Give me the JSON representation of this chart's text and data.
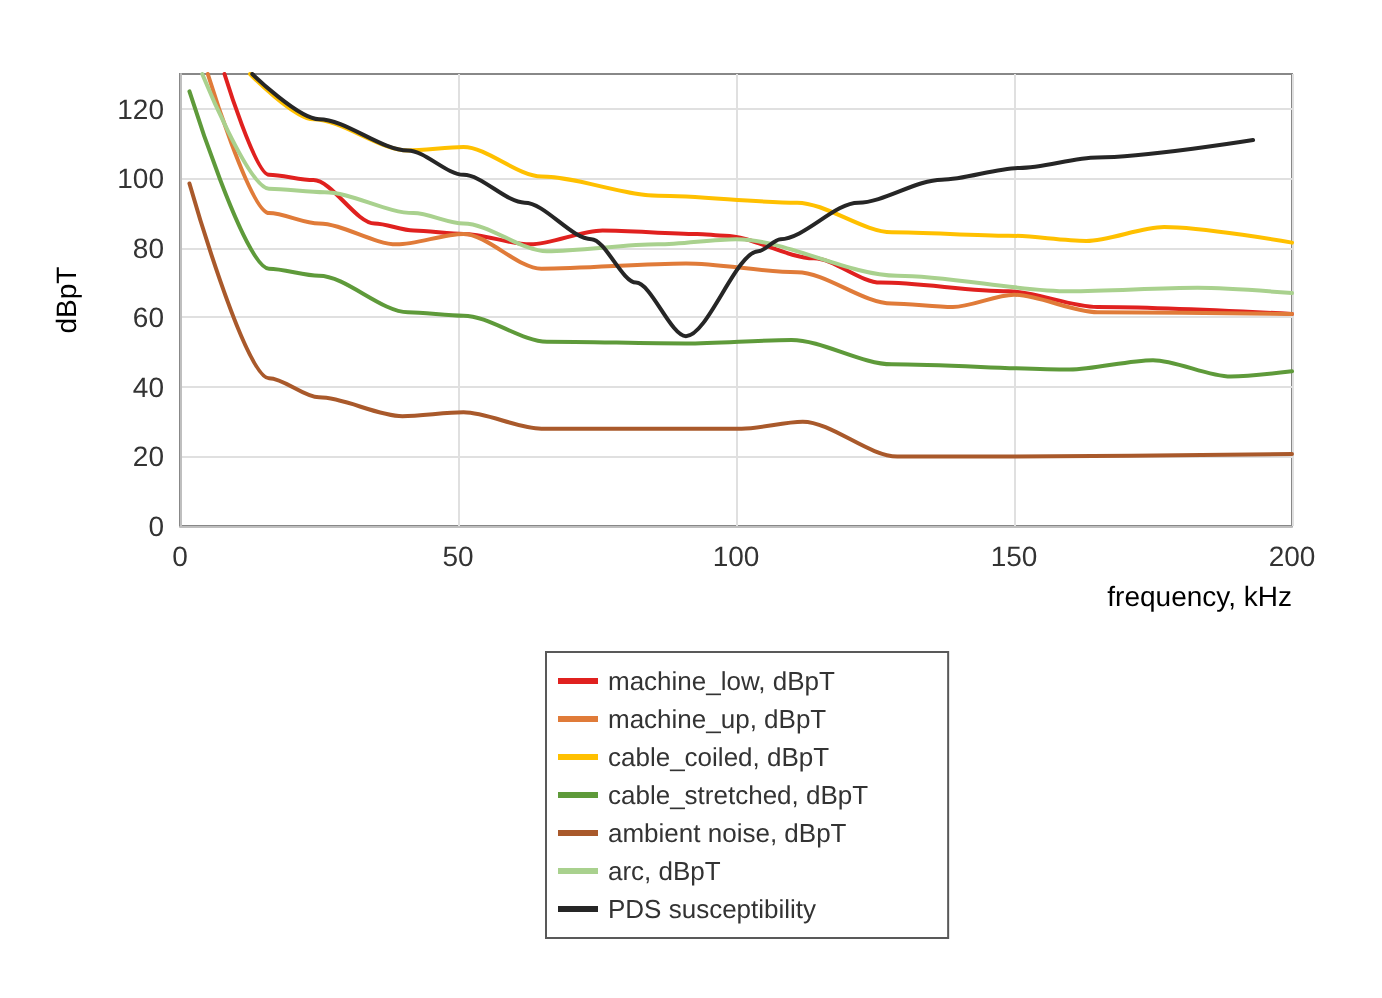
{
  "chart_data": {
    "type": "line",
    "xlabel": "frequency, kHz",
    "ylabel": "dBpT",
    "xlim": [
      0,
      200
    ],
    "xticks": [
      0,
      50,
      100,
      150,
      200
    ],
    "ylim": [
      0,
      130
    ],
    "yticks": [
      0,
      20,
      40,
      60,
      80,
      100,
      120
    ],
    "grid": true,
    "legend": "bottom",
    "marker": "none",
    "line_style": "solid",
    "series": [
      {
        "name": "machine_low, dBpT",
        "color": "#e0211f",
        "x": [
          8,
          16,
          24,
          35,
          42,
          51,
          63,
          76,
          93,
          98,
          114,
          126,
          149,
          165,
          200
        ],
        "values": [
          130,
          101,
          99.5,
          87,
          85,
          84,
          81,
          85,
          84,
          83.5,
          77,
          70,
          67.5,
          63,
          61
        ]
      },
      {
        "name": "machine_up, dBpT",
        "color": "#e07b39",
        "x": [
          5,
          16,
          25,
          39,
          51,
          65,
          91,
          111,
          128,
          139,
          150,
          165,
          200
        ],
        "values": [
          130,
          90,
          87,
          81,
          84,
          74,
          75.5,
          73,
          64,
          63,
          66.5,
          61.5,
          61
        ]
      },
      {
        "name": "cable_coiled, dBpT",
        "color": "#ffc000",
        "x": [
          12.6,
          24,
          41,
          51,
          65,
          86,
          111,
          128,
          149,
          163,
          177,
          200
        ],
        "values": [
          130,
          117,
          108,
          109,
          100.5,
          95,
          93,
          84.5,
          83.5,
          82,
          86,
          81.5
        ]
      },
      {
        "name": "cable_stretched, dBpT",
        "color": "#5e9a3a",
        "x": [
          1.7,
          16,
          25,
          41,
          51,
          66,
          91,
          110,
          128,
          160,
          175,
          189,
          200
        ],
        "values": [
          125,
          74,
          72,
          61.5,
          60.5,
          53,
          52.5,
          53.5,
          46.5,
          45,
          47.7,
          43,
          44.5
        ]
      },
      {
        "name": "ambient noise, dBpT",
        "color": "#a9592b",
        "x": [
          1.7,
          16,
          25,
          40,
          51,
          65,
          91,
          101,
          112,
          129,
          149,
          200
        ],
        "values": [
          98.5,
          42.5,
          37,
          31.6,
          32.7,
          28,
          28,
          28,
          30,
          20,
          20,
          20.7
        ]
      },
      {
        "name": "arc, dBpT",
        "color": "#a9d18e",
        "x": [
          4,
          16,
          26,
          42,
          51,
          66,
          86,
          100,
          129,
          160,
          183,
          200
        ],
        "values": [
          130,
          97,
          96,
          90,
          87,
          79,
          81,
          82.5,
          72,
          67.5,
          68.5,
          67
        ]
      },
      {
        "name": "PDS susceptibility",
        "color": "#262626",
        "x": [
          13,
          25,
          41,
          51,
          62,
          74,
          82,
          91,
          104,
          108,
          122,
          137,
          151,
          165,
          193
        ],
        "values": [
          130,
          117,
          108,
          101,
          93,
          82.5,
          70,
          54.6,
          79,
          82.5,
          93,
          99.6,
          103,
          106,
          111
        ]
      }
    ]
  }
}
